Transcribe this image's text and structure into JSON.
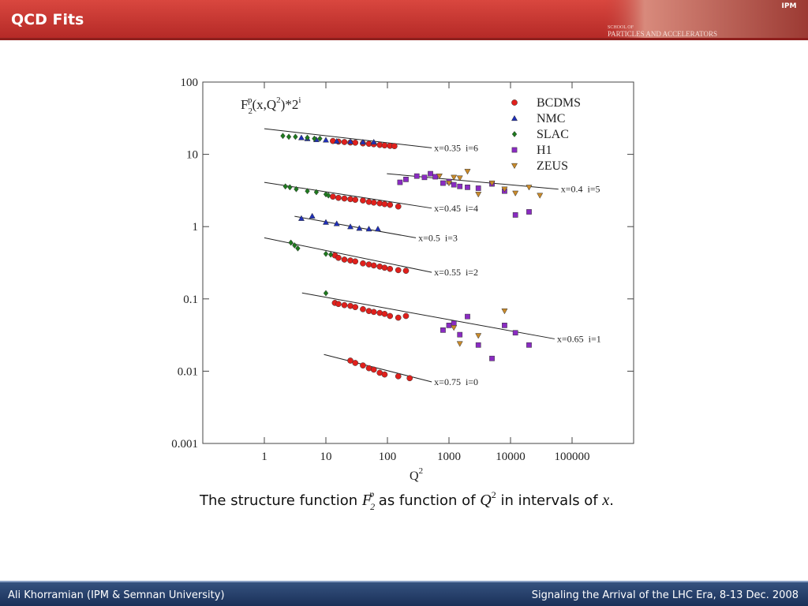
{
  "header": {
    "title": "QCD Fits",
    "logo_small": "SCHOOL OF",
    "logo_main": "PARTICLES AND ACCELERATORS",
    "logo_badge": "IPM"
  },
  "chart_data": {
    "type": "scatter",
    "log_x": true,
    "log_y": true,
    "xlim": [
      0.1,
      1000000
    ],
    "ylim": [
      0.001,
      100
    ],
    "xticks": [
      1,
      10,
      100,
      1000,
      10000,
      100000
    ],
    "yticks": [
      0.001,
      0.01,
      0.1,
      1,
      10,
      100
    ],
    "x_label_parts": [
      "Q",
      "2"
    ],
    "y_label_parts": [
      "F",
      "2",
      "p",
      "(x,Q",
      "2",
      ")*2",
      "i"
    ],
    "legend": "upper right",
    "series": [
      {
        "name": "BCDMS",
        "color": "#e0201c",
        "marker": "circle",
        "x": [
          13,
          16,
          20,
          25,
          30,
          40,
          50,
          60,
          75,
          90,
          110,
          130,
          13,
          16,
          20,
          25,
          30,
          40,
          50,
          60,
          75,
          90,
          110,
          150,
          14,
          16,
          20,
          25,
          30,
          40,
          50,
          60,
          75,
          90,
          110,
          150,
          200,
          14,
          16,
          20,
          25,
          30,
          40,
          50,
          60,
          75,
          90,
          110,
          150,
          200,
          25,
          30,
          40,
          50,
          60,
          75,
          90,
          150,
          230
        ],
        "y": [
          15.3,
          15,
          14.8,
          14.6,
          14.5,
          14.2,
          14,
          13.8,
          13.5,
          13.3,
          13.1,
          13,
          2.6,
          2.5,
          2.45,
          2.4,
          2.35,
          2.3,
          2.2,
          2.15,
          2.1,
          2.05,
          2.0,
          1.9,
          0.4,
          0.37,
          0.35,
          0.34,
          0.33,
          0.31,
          0.3,
          0.29,
          0.28,
          0.27,
          0.26,
          0.25,
          0.245,
          0.088,
          0.085,
          0.082,
          0.08,
          0.077,
          0.072,
          0.068,
          0.066,
          0.064,
          0.062,
          0.058,
          0.055,
          0.058,
          0.014,
          0.013,
          0.012,
          0.011,
          0.0105,
          0.0095,
          0.009,
          0.0085,
          0.008
        ]
      },
      {
        "name": "NMC",
        "color": "#1f2fb8",
        "marker": "triangle",
        "x": [
          4,
          5,
          7,
          10,
          15,
          25,
          40,
          60,
          4,
          6,
          10,
          15,
          25,
          35,
          50,
          70
        ],
        "y": [
          17,
          16.5,
          16,
          15.8,
          15.2,
          15,
          14.8,
          14.8,
          1.3,
          1.4,
          1.15,
          1.1,
          1.0,
          0.95,
          0.93,
          0.93
        ]
      },
      {
        "name": "SLAC",
        "color": "#1e7a1e",
        "marker": "diamond",
        "x": [
          2,
          2.5,
          3.2,
          5,
          6.5,
          8,
          2.2,
          2.6,
          3.3,
          5,
          7,
          10,
          11,
          2.7,
          3.1,
          3.5,
          10,
          12,
          10
        ],
        "y": [
          18,
          17.5,
          17.5,
          17,
          16.5,
          16.5,
          3.6,
          3.5,
          3.3,
          3.1,
          3.0,
          2.8,
          2.7,
          0.6,
          0.55,
          0.5,
          0.42,
          0.41,
          0.12
        ]
      },
      {
        "name": "H1",
        "color": "#8a2bc2",
        "marker": "square",
        "x": [
          160,
          200,
          300,
          400,
          500,
          600,
          800,
          1000,
          1200,
          1500,
          2000,
          3000,
          5000,
          8000,
          12000,
          20000,
          800,
          1000,
          1200,
          1500,
          2000,
          3000,
          5000,
          8000,
          12000,
          20000
        ],
        "y": [
          4.1,
          4.5,
          5,
          4.8,
          5.4,
          4.9,
          4.0,
          4.2,
          3.8,
          3.6,
          3.5,
          3.4,
          3.9,
          3.1,
          1.45,
          1.6,
          0.037,
          0.043,
          0.046,
          0.032,
          0.057,
          0.023,
          0.015,
          0.043,
          0.034,
          0.023
        ]
      },
      {
        "name": "ZEUS",
        "color": "#c98a2a",
        "marker": "triangle-down",
        "x": [
          700,
          1000,
          1200,
          1500,
          2000,
          3000,
          5000,
          8000,
          12000,
          20000,
          30000,
          1200,
          1500,
          3000,
          8000
        ],
        "y": [
          5,
          4.0,
          4.8,
          4.7,
          5.8,
          2.8,
          4.0,
          3.3,
          2.9,
          3.5,
          2.7,
          0.04,
          0.024,
          0.031,
          0.068
        ]
      }
    ],
    "fits": [
      {
        "label": "x=0.35  i=6",
        "x": [
          1,
          525
        ],
        "y": [
          22.6,
          12.3
        ]
      },
      {
        "label": "x=0.4  i=5",
        "x": [
          98,
          60000
        ],
        "y": [
          5.4,
          3.3
        ]
      },
      {
        "label": "x=0.45  i=4",
        "x": [
          1,
          525
        ],
        "y": [
          4.1,
          1.8
        ]
      },
      {
        "label": "x=0.5  i=3",
        "x": [
          3.1,
          290
        ],
        "y": [
          1.39,
          0.7
        ]
      },
      {
        "label": "x=0.55  i=2",
        "x": [
          1,
          525
        ],
        "y": [
          0.7,
          0.233
        ]
      },
      {
        "label": "x=0.65  i=1",
        "x": [
          4.1,
          52000
        ],
        "y": [
          0.121,
          0.028
        ]
      },
      {
        "label": "x=0.75  i=0",
        "x": [
          9.3,
          525
        ],
        "y": [
          0.017,
          0.0071
        ]
      }
    ]
  },
  "caption_parts": [
    "The structure function ",
    "F",
    "2",
    "p",
    " as function of ",
    "Q",
    "2",
    " in intervals of ",
    "x",
    "."
  ],
  "footer": {
    "left": "Ali Khorramian (IPM & Semnan University)",
    "right": "Signaling the Arrival of the LHC Era, 8-13 Dec. 2008"
  }
}
